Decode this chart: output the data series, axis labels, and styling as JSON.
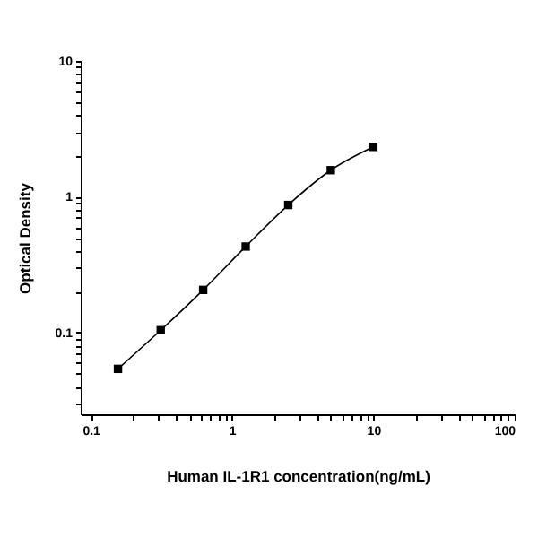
{
  "chart_data": {
    "type": "line",
    "xlabel": "Human IL-1R1 concentration(ng/mL)",
    "ylabel": "Optical Density",
    "log": "xy",
    "grid": false,
    "marker": "square",
    "line_style": "solid",
    "x": [
      0.156,
      0.313,
      0.625,
      1.25,
      2.5,
      5,
      10
    ],
    "series": [
      {
        "color": "#000000",
        "values": [
          0.054,
          0.104,
          0.206,
          0.43,
          0.87,
          1.57,
          2.33
        ]
      }
    ],
    "xlim": [
      0.085,
      100
    ],
    "ylim": [
      0.025,
      10
    ],
    "xticks": [
      0.1,
      {
        "value": 0.2,
        "label": null
      },
      {
        "value": 0.3,
        "label": null
      },
      {
        "value": 0.4,
        "label": null
      },
      {
        "value": 0.5,
        "label": null
      },
      {
        "value": 0.6,
        "label": null
      },
      {
        "value": 0.7,
        "label": null
      },
      {
        "value": 0.8,
        "label": null
      },
      {
        "value": 0.9,
        "label": null
      },
      1,
      {
        "value": 2,
        "label": null
      },
      {
        "value": 3,
        "label": null
      },
      {
        "value": 4,
        "label": null
      },
      {
        "value": 5,
        "label": null
      },
      {
        "value": 6,
        "label": null
      },
      {
        "value": 7,
        "label": null
      },
      {
        "value": 8,
        "label": null
      },
      {
        "value": 9,
        "label": null
      },
      10,
      {
        "value": 20,
        "label": null
      },
      {
        "value": 30,
        "label": null
      },
      {
        "value": 40,
        "label": null
      },
      {
        "value": 50,
        "label": null
      },
      {
        "value": 60,
        "label": null
      },
      {
        "value": 70,
        "label": null
      },
      {
        "value": 80,
        "label": null
      },
      {
        "value": 90,
        "label": null
      },
      100
    ],
    "yticks": [
      {
        "value": 0.03,
        "label": null
      },
      {
        "value": 0.04,
        "label": null
      },
      {
        "value": 0.05,
        "label": null
      },
      {
        "value": 0.06,
        "label": null
      },
      {
        "value": 0.07,
        "label": null
      },
      {
        "value": 0.08,
        "label": null
      },
      {
        "value": 0.09,
        "label": null
      },
      0.1,
      {
        "value": 0.2,
        "label": null
      },
      {
        "value": 0.3,
        "label": null
      },
      {
        "value": 0.4,
        "label": null
      },
      {
        "value": 0.5,
        "label": null
      },
      {
        "value": 0.6,
        "label": null
      },
      {
        "value": 0.7,
        "label": null
      },
      {
        "value": 0.8,
        "label": null
      },
      {
        "value": 0.9,
        "label": null
      },
      1,
      {
        "value": 2,
        "label": null
      },
      {
        "value": 3,
        "label": null
      },
      {
        "value": 4,
        "label": null
      },
      {
        "value": 5,
        "label": null
      },
      {
        "value": 6,
        "label": null
      },
      {
        "value": 7,
        "label": null
      },
      {
        "value": 8,
        "label": null
      },
      {
        "value": 9,
        "label": null
      },
      10
    ]
  }
}
